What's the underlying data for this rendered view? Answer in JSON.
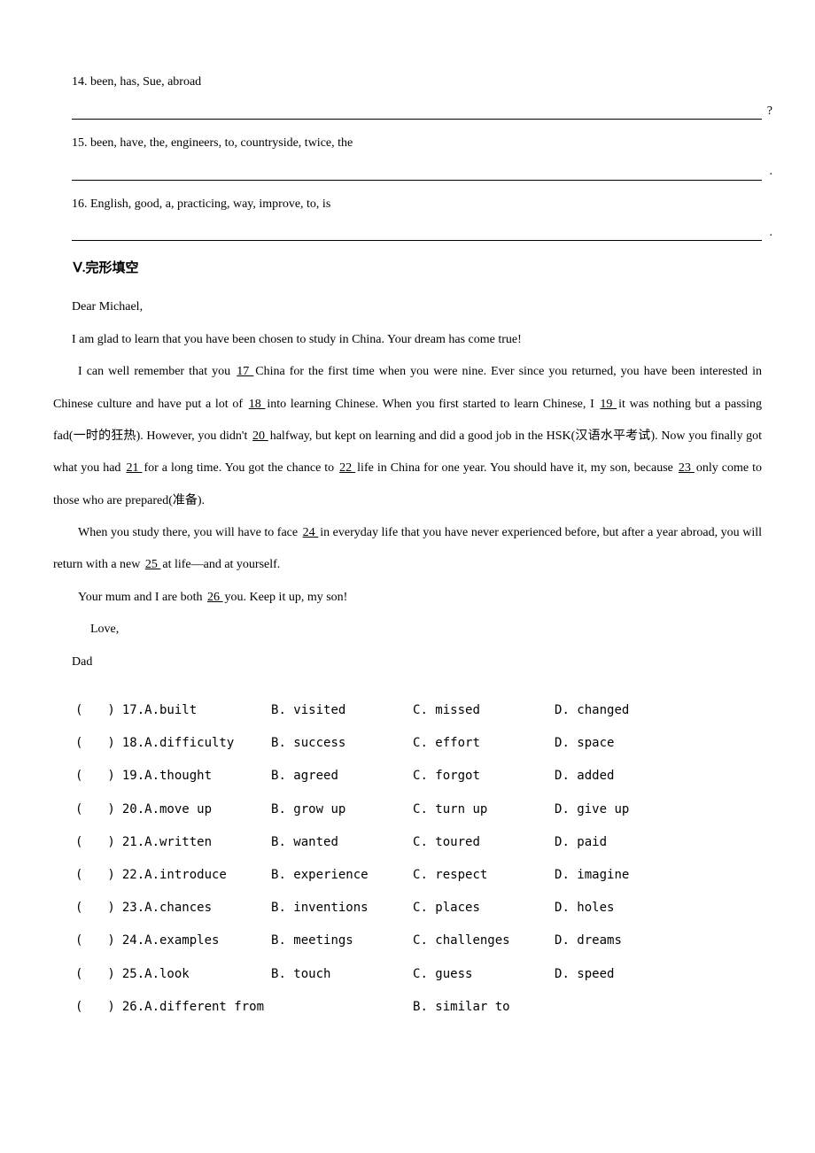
{
  "colors": {
    "text": "#000000",
    "background": "#ffffff",
    "underline": "#000000"
  },
  "typography": {
    "body_font": "SimSun",
    "body_fontsize_pt": 10.5,
    "heading_fontsize_pt": 11,
    "heading_weight": "bold",
    "line_height_passage": 2.6
  },
  "ex14": {
    "prompt": "14. been, has, Sue, abroad",
    "end_punct": "?"
  },
  "ex15": {
    "prompt": "15. been, have, the, engineers, to, countryside, twice, the",
    "end_punct": "."
  },
  "ex16": {
    "prompt": "16. English, good, a, practicing, way, improve, to, is",
    "end_punct": "."
  },
  "sectionV_heading": "Ⅴ.完形填空",
  "passage": {
    "greeting": "Dear Michael,",
    "p1": "I am glad to learn that you have been chosen to study in China. Your dream has come true!",
    "p2a": "I can well remember that you ",
    "b17": "  17  ",
    "p2b": " China for the first time when you were nine. Ever since you returned, you have been interested in Chinese culture and have put a lot of ",
    "b18": "  18  ",
    "p2c": " into learning Chinese. When you first started to learn Chinese, I ",
    "b19": "  19  ",
    "p2d": " it was nothing but a passing fad(一时的狂热). However, you didn't ",
    "b20": "  20  ",
    "p2e": " halfway, but kept on learning and did a good job in the HSK(汉语水平考试). Now you finally got what you had ",
    "b21": "  21  ",
    "p2f": " for a long time. You got the chance to ",
    "b22": "  22  ",
    "p2g": " life in China for one year. You should have it, my son, because ",
    "b23": "  23  ",
    "p2h": " only come to those who are prepared(准备).",
    "p3a": "When you study there, you will have to face ",
    "b24": "  24  ",
    "p3b": " in everyday life that you have never experienced before, but after a year abroad, you will return with a new ",
    "b25": "  25  ",
    "p3c": " at life—and at yourself.",
    "p4a": "Your mum and I are both ",
    "b26": "  26  ",
    "p4b": " you. Keep it up, my son!",
    "closing1": "Love,",
    "closing2": "Dad"
  },
  "answers": {
    "rows": [
      {
        "paren": "(　　)",
        "q": "17.A.built",
        "b": "B. visited",
        "c": "C. missed",
        "d": "D. changed"
      },
      {
        "paren": "(　　)",
        "q": "18.A.difficulty",
        "b": "B. success",
        "c": "C. effort",
        "d": "D. space"
      },
      {
        "paren": "(　　)",
        "q": "19.A.thought",
        "b": "B. agreed",
        "c": "C. forgot",
        "d": "D. added"
      },
      {
        "paren": "(　　)",
        "q": "20.A.move up",
        "b": "B. grow up",
        "c": "C. turn up",
        "d": "D. give up"
      },
      {
        "paren": "(　　)",
        "q": "21.A.written",
        "b": "B. wanted",
        "c": "C. toured",
        "d": "D. paid"
      },
      {
        "paren": "(　　)",
        "q": "22.A.introduce",
        "b": "B. experience",
        "c": "C. respect",
        "d": "D. imagine"
      },
      {
        "paren": "(　　)",
        "q": "23.A.chances",
        "b": "B. inventions",
        "c": "C. places",
        "d": "D. holes"
      },
      {
        "paren": "(　　)",
        "q": "24.A.examples",
        "b": "B. meetings",
        "c": "C. challenges",
        "d": "D. dreams"
      },
      {
        "paren": "(　　)",
        "q": "25.A.look",
        "b": "B. touch",
        "c": "C. guess",
        "d": "D. speed"
      },
      {
        "paren": "(　　)",
        "q": "26.A.different from",
        "b": "",
        "c": "B. similar to",
        "d": ""
      }
    ]
  }
}
